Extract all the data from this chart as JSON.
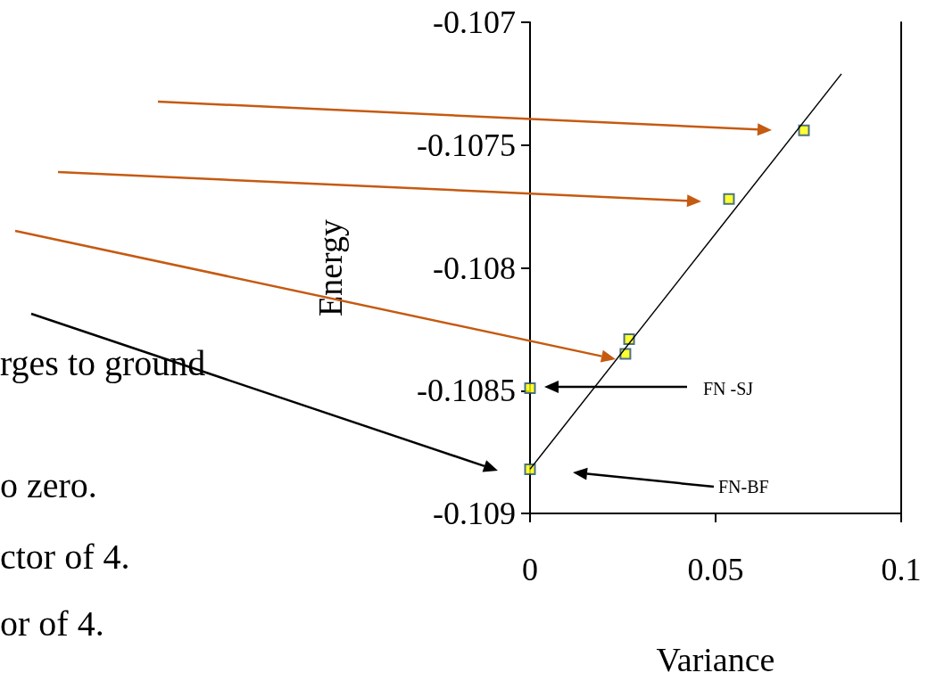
{
  "chart_data": {
    "type": "scatter",
    "xlabel": "Variance",
    "ylabel": "Energy",
    "xlim": [
      0,
      0.1
    ],
    "xticks": [
      0,
      0.05,
      0.1
    ],
    "ylim": [
      -0.109,
      -0.107
    ],
    "yticks": [
      -0.109,
      -0.1085,
      -0.108,
      -0.1075,
      -0.107
    ],
    "grid": false,
    "series": [
      {
        "marker": "square",
        "color": "#ffff00",
        "x": [
          0.0738,
          0.0536,
          0.0267,
          0.0257,
          0,
          0
        ],
        "values": [
          -0.10744,
          -0.10772,
          -0.10829,
          -0.10835,
          -0.10849,
          -0.10882
        ]
      },
      {
        "type": "line",
        "marker": "none",
        "color": "#000000",
        "x": [
          0,
          0.0839
        ],
        "values": [
          -0.10882,
          -0.10721
        ]
      }
    ],
    "annotations": [
      "FN -SJ",
      "FN-BF",
      "rges to ground",
      "o zero.",
      "ctor of 4.",
      "or of 4."
    ]
  }
}
